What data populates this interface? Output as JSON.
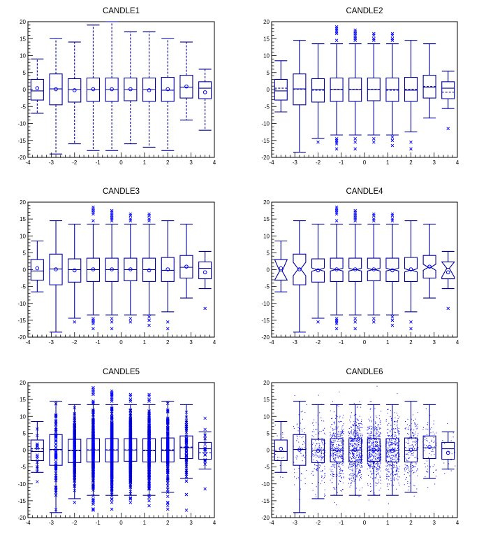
{
  "chart_data": {
    "type": "box",
    "xlim": [
      -4,
      4
    ],
    "ylim": [
      -20,
      20
    ],
    "x_ticks": [
      -4,
      -3,
      -2,
      -1,
      0,
      1,
      2,
      3,
      4
    ],
    "x_tick_labels": [
      "-4",
      "-3",
      "-2",
      "-1",
      "0",
      "1",
      "2",
      "3",
      "4"
    ],
    "y_ticks": [
      -20,
      -15,
      -10,
      -5,
      0,
      5,
      10,
      15,
      20
    ],
    "y_tick_labels": [
      "-20",
      "-15",
      "-10",
      "-5",
      "0",
      "5",
      "10",
      "15",
      "20"
    ],
    "colors": {
      "line": "#00009c",
      "points": "#0000ff",
      "frame": "#000000"
    },
    "panels": [
      {
        "title": "CANDLE1",
        "style": "minmax-dashed-whiskers-mean-circle"
      },
      {
        "title": "CANDLE2",
        "style": "iqr-whiskers-outliers-mean-line"
      },
      {
        "title": "CANDLE3",
        "style": "iqr-whiskers-outliers-mean-circle"
      },
      {
        "title": "CANDLE4",
        "style": "notched-outliers-mean-circle"
      },
      {
        "title": "CANDLE5",
        "style": "iqr-whiskers-all-points-mean-line"
      },
      {
        "title": "CANDLE6",
        "style": "iqr-whiskers-scatter-points-mean-circle"
      }
    ],
    "candles": [
      {
        "x": -3.6,
        "q1": -3.1,
        "median": -0.4,
        "q3": 3.0,
        "mean": 0.4,
        "min": -7,
        "max": 9,
        "lower_whisker": -6.6,
        "upper_whisker": 8.5,
        "outliers": [],
        "notch": 3.5
      },
      {
        "x": -2.8,
        "q1": -4.5,
        "median": 0.2,
        "q3": 4.6,
        "mean": 0.1,
        "min": -19,
        "max": 15,
        "lower_whisker": -18.5,
        "upper_whisker": 14.5,
        "outliers": [],
        "notch": 2.0
      },
      {
        "x": -2.0,
        "q1": -3.7,
        "median": 0.0,
        "q3": 3.2,
        "mean": -0.2,
        "min": -16,
        "max": 14,
        "lower_whisker": -14.4,
        "upper_whisker": 13.5,
        "outliers": [
          -15.5
        ],
        "notch": 0.5
      },
      {
        "x": -1.2,
        "q1": -3.5,
        "median": 0.0,
        "q3": 3.4,
        "mean": 0.1,
        "min": -18,
        "max": 19,
        "lower_whisker": -13.4,
        "upper_whisker": 13.5,
        "outliers": [
          14.5,
          16.5,
          17.0,
          17.5,
          18.0,
          18.5,
          -14.5,
          -15.0,
          -15.5,
          -16.0,
          -17.5
        ],
        "notch": 0.4
      },
      {
        "x": -0.4,
        "q1": -3.5,
        "median": 0.0,
        "q3": 3.4,
        "mean": 0.1,
        "min": -18,
        "max": 20,
        "lower_whisker": -13.4,
        "upper_whisker": 13.5,
        "outliers": [
          14.5,
          15.0,
          15.5,
          16.0,
          16.5,
          17.0,
          17.5,
          -14.5,
          -15.5,
          -17.5
        ],
        "notch": 0.4
      },
      {
        "x": 0.4,
        "q1": -3.3,
        "median": 0.0,
        "q3": 3.4,
        "mean": 0.1,
        "min": -16,
        "max": 17,
        "lower_whisker": -13.4,
        "upper_whisker": 13.5,
        "outliers": [
          14.5,
          15.0,
          16.0,
          16.5,
          -14.5,
          -15.5
        ],
        "notch": 0.4
      },
      {
        "x": 1.2,
        "q1": -3.5,
        "median": 0.0,
        "q3": 3.4,
        "mean": -0.2,
        "min": -17,
        "max": 17,
        "lower_whisker": -13.4,
        "upper_whisker": 13.5,
        "outliers": [
          14.5,
          15.0,
          16.0,
          16.5,
          -14.0,
          -15.0,
          -16.5
        ],
        "notch": 0.4
      },
      {
        "x": 2.0,
        "q1": -3.5,
        "median": -0.2,
        "q3": 3.6,
        "mean": 0.1,
        "min": -18,
        "max": 15,
        "lower_whisker": -12.5,
        "upper_whisker": 14.5,
        "outliers": [
          -15.5,
          -17.5
        ],
        "notch": 0.5
      },
      {
        "x": 2.8,
        "q1": -2.5,
        "median": 0.7,
        "q3": 4.2,
        "mean": 0.9,
        "min": -9,
        "max": 14,
        "lower_whisker": -8.4,
        "upper_whisker": 13.5,
        "outliers": [],
        "notch": 0.9
      },
      {
        "x": 3.6,
        "q1": -2.7,
        "median": 0.4,
        "q3": 2.3,
        "mean": -0.8,
        "min": -12,
        "max": 6,
        "lower_whisker": -5.6,
        "upper_whisker": 5.4,
        "outliers": [
          -11.5
        ],
        "notch": 2.6
      }
    ]
  }
}
